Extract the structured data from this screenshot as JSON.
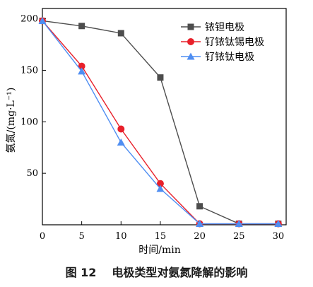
{
  "caption": {
    "figure_number": "图 12",
    "title": "电极类型对氨氮降解的影响"
  },
  "chart_data": {
    "type": "line",
    "xlabel": "时间/min",
    "ylabel": "氨氮/(mg·L⁻¹)",
    "xlim": [
      0,
      31
    ],
    "ylim": [
      0,
      210
    ],
    "xticks": [
      0,
      5,
      10,
      15,
      20,
      25,
      30
    ],
    "yticks": [
      50,
      100,
      150,
      200
    ],
    "legend_position": "top-right",
    "grid": false,
    "series": [
      {
        "name": "铱钽电极",
        "marker": "square",
        "color": "#4d4d4d",
        "x": [
          0,
          5,
          10,
          15,
          20,
          25,
          30
        ],
        "y": [
          198,
          193,
          186,
          143,
          18,
          1,
          1
        ]
      },
      {
        "name": "钌铱钛锡电极",
        "marker": "circle",
        "color": "#e8202a",
        "x": [
          0,
          5,
          10,
          15,
          20,
          25,
          30
        ],
        "y": [
          198,
          154,
          93,
          40,
          1,
          1,
          1
        ]
      },
      {
        "name": "钌铱钛电极",
        "marker": "triangle",
        "color": "#4f8ef2",
        "x": [
          0,
          5,
          10,
          15,
          20,
          25,
          30
        ],
        "y": [
          198,
          149,
          80,
          35,
          1,
          1,
          1
        ]
      }
    ]
  }
}
